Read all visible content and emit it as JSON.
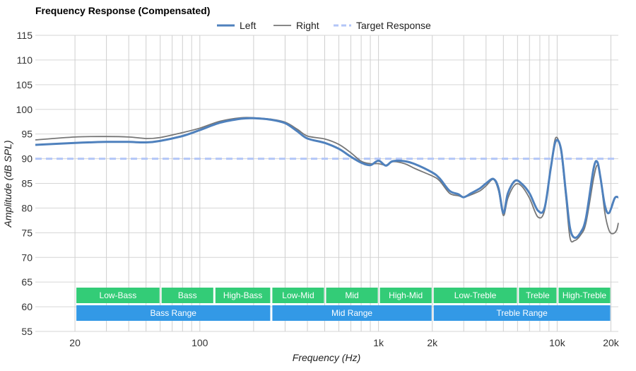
{
  "chart_data": {
    "type": "line",
    "title": "Frequency Response (Compensated)",
    "xlabel": "Frequency (Hz)",
    "ylabel": "Amplitude (dB SPL)",
    "xscale": "log",
    "xlim": [
      12,
      22000
    ],
    "ylim": [
      55,
      115
    ],
    "yticks": [
      55,
      60,
      65,
      70,
      75,
      80,
      85,
      90,
      95,
      100,
      105,
      110,
      115
    ],
    "xticks": [
      {
        "value": 20,
        "label": "20"
      },
      {
        "value": 100,
        "label": "100"
      },
      {
        "value": 1000,
        "label": "1k"
      },
      {
        "value": 2000,
        "label": "2k"
      },
      {
        "value": 10000,
        "label": "10k"
      },
      {
        "value": 20000,
        "label": "20k"
      }
    ],
    "minor_gridlines": [
      20,
      30,
      40,
      50,
      60,
      70,
      80,
      90,
      100,
      200,
      300,
      400,
      500,
      600,
      700,
      800,
      900,
      1000,
      2000,
      3000,
      4000,
      5000,
      6000,
      7000,
      8000,
      9000,
      10000,
      20000
    ],
    "legend_position": "top-center",
    "series": [
      {
        "name": "Left",
        "color": "#4f81bd",
        "style": "solid-thick",
        "points": [
          [
            12,
            92.8
          ],
          [
            20,
            93.2
          ],
          [
            30,
            93.4
          ],
          [
            40,
            93.4
          ],
          [
            50,
            93.3
          ],
          [
            60,
            93.6
          ],
          [
            80,
            94.6
          ],
          [
            100,
            95.8
          ],
          [
            130,
            97.3
          ],
          [
            170,
            98.1
          ],
          [
            200,
            98.2
          ],
          [
            250,
            97.9
          ],
          [
            300,
            97.2
          ],
          [
            350,
            95.6
          ],
          [
            400,
            94.1
          ],
          [
            500,
            93.2
          ],
          [
            600,
            92.0
          ],
          [
            700,
            90.4
          ],
          [
            800,
            89.2
          ],
          [
            900,
            88.7
          ],
          [
            1000,
            89.6
          ],
          [
            1100,
            88.6
          ],
          [
            1200,
            89.5
          ],
          [
            1400,
            89.5
          ],
          [
            1600,
            88.9
          ],
          [
            2000,
            87.2
          ],
          [
            2200,
            86.0
          ],
          [
            2500,
            83.5
          ],
          [
            2800,
            82.8
          ],
          [
            3000,
            82.2
          ],
          [
            3300,
            83.0
          ],
          [
            3700,
            84.0
          ],
          [
            4000,
            85.0
          ],
          [
            4400,
            85.9
          ],
          [
            4700,
            84.0
          ],
          [
            5000,
            79.0
          ],
          [
            5300,
            83.0
          ],
          [
            5800,
            85.5
          ],
          [
            6300,
            85.0
          ],
          [
            7000,
            83.0
          ],
          [
            7800,
            79.5
          ],
          [
            8500,
            80.0
          ],
          [
            9200,
            88.0
          ],
          [
            9800,
            93.5
          ],
          [
            10500,
            92.0
          ],
          [
            11200,
            83.0
          ],
          [
            11800,
            76.0
          ],
          [
            12500,
            74.0
          ],
          [
            13500,
            75.0
          ],
          [
            14500,
            78.0
          ],
          [
            16000,
            88.0
          ],
          [
            16800,
            89.3
          ],
          [
            17500,
            86.0
          ],
          [
            18500,
            80.5
          ],
          [
            19500,
            79.0
          ],
          [
            21000,
            82.0
          ],
          [
            22000,
            82.2
          ]
        ]
      },
      {
        "name": "Right",
        "color": "#777777",
        "style": "solid-thin",
        "points": [
          [
            12,
            93.8
          ],
          [
            20,
            94.4
          ],
          [
            30,
            94.5
          ],
          [
            40,
            94.4
          ],
          [
            50,
            94.1
          ],
          [
            60,
            94.3
          ],
          [
            80,
            95.3
          ],
          [
            100,
            96.2
          ],
          [
            130,
            97.6
          ],
          [
            170,
            98.3
          ],
          [
            200,
            98.3
          ],
          [
            250,
            98.0
          ],
          [
            300,
            97.4
          ],
          [
            350,
            96.0
          ],
          [
            400,
            94.6
          ],
          [
            500,
            94.0
          ],
          [
            600,
            92.9
          ],
          [
            700,
            91.2
          ],
          [
            800,
            89.5
          ],
          [
            900,
            89.0
          ],
          [
            1000,
            89.0
          ],
          [
            1100,
            88.7
          ],
          [
            1200,
            89.4
          ],
          [
            1400,
            89.0
          ],
          [
            1600,
            88.0
          ],
          [
            2000,
            86.5
          ],
          [
            2200,
            85.5
          ],
          [
            2500,
            83.0
          ],
          [
            2800,
            82.5
          ],
          [
            3000,
            82.2
          ],
          [
            3300,
            82.7
          ],
          [
            3700,
            83.5
          ],
          [
            4000,
            84.5
          ],
          [
            4400,
            85.8
          ],
          [
            4700,
            83.5
          ],
          [
            5000,
            78.5
          ],
          [
            5300,
            82.0
          ],
          [
            5800,
            84.7
          ],
          [
            6300,
            84.5
          ],
          [
            7000,
            82.0
          ],
          [
            7800,
            78.2
          ],
          [
            8500,
            79.5
          ],
          [
            9200,
            88.0
          ],
          [
            9800,
            94.2
          ],
          [
            10500,
            91.5
          ],
          [
            11200,
            82.0
          ],
          [
            11800,
            74.0
          ],
          [
            12500,
            73.4
          ],
          [
            13500,
            74.5
          ],
          [
            14500,
            77.0
          ],
          [
            16000,
            86.0
          ],
          [
            16800,
            88.7
          ],
          [
            17500,
            86.0
          ],
          [
            18500,
            79.0
          ],
          [
            19500,
            75.5
          ],
          [
            20500,
            74.8
          ],
          [
            21500,
            75.5
          ],
          [
            22000,
            77.0
          ]
        ]
      },
      {
        "name": "Target Response",
        "color": "#b3c6f7",
        "style": "dashed",
        "points": [
          [
            12,
            90
          ],
          [
            22000,
            90
          ]
        ]
      }
    ],
    "bands": [
      {
        "label": "Low-Bass",
        "from": 20,
        "to": 60,
        "row": 1
      },
      {
        "label": "Bass",
        "from": 60,
        "to": 120,
        "row": 1
      },
      {
        "label": "High-Bass",
        "from": 120,
        "to": 250,
        "row": 1
      },
      {
        "label": "Low-Mid",
        "from": 250,
        "to": 500,
        "row": 1
      },
      {
        "label": "Mid",
        "from": 500,
        "to": 1000,
        "row": 1
      },
      {
        "label": "High-Mid",
        "from": 1000,
        "to": 2000,
        "row": 1
      },
      {
        "label": "Low-Treble",
        "from": 2000,
        "to": 6000,
        "row": 1
      },
      {
        "label": "Treble",
        "from": 6000,
        "to": 10000,
        "row": 1
      },
      {
        "label": "High-Treble",
        "from": 10000,
        "to": 20000,
        "row": 1
      },
      {
        "label": "Bass Range",
        "from": 20,
        "to": 250,
        "row": 2
      },
      {
        "label": "Mid Range",
        "from": 250,
        "to": 2000,
        "row": 2
      },
      {
        "label": "Treble Range",
        "from": 2000,
        "to": 20000,
        "row": 2
      }
    ],
    "band_colors": {
      "row1": "#33cc77",
      "row2": "#3399e6"
    }
  }
}
